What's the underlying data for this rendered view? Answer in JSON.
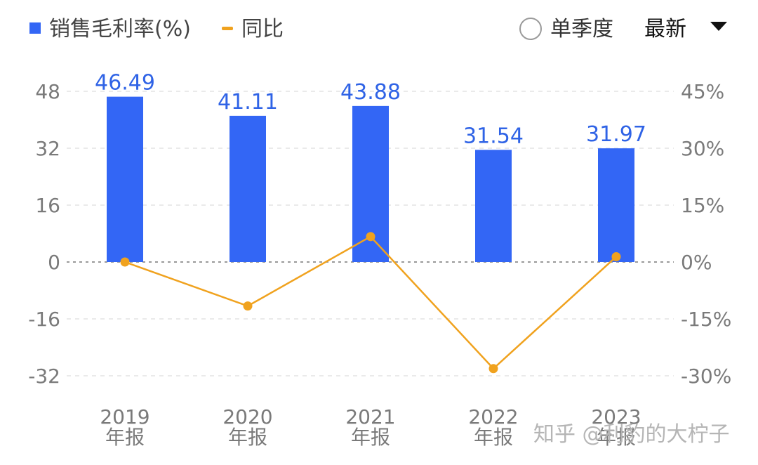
{
  "legend": {
    "bar_label": "销售毛利率(%)",
    "line_label": "同比"
  },
  "controls": {
    "single_quarter_label": "单季度",
    "period_label": "最新"
  },
  "watermark": "知乎 @利豹的大柠子",
  "colors": {
    "bar": "#3366f5",
    "line": "#f0a21e",
    "data_label": "#2f63e6"
  },
  "chart_data": {
    "type": "bar",
    "categories": [
      [
        "2019",
        "年报"
      ],
      [
        "2020",
        "年报"
      ],
      [
        "2021",
        "年报"
      ],
      [
        "2022",
        "年报"
      ],
      [
        "2023",
        "年报"
      ]
    ],
    "series": [
      {
        "name": "销售毛利率(%)",
        "type": "bar",
        "axis": "left",
        "values": [
          46.49,
          41.11,
          43.88,
          31.54,
          31.97
        ]
      },
      {
        "name": "同比",
        "type": "line",
        "axis": "right",
        "values": [
          0,
          -11.6,
          6.7,
          -28.1,
          1.4
        ]
      }
    ],
    "left_axis": {
      "min": -32,
      "max": 48,
      "ticks": [
        48,
        32,
        16,
        0,
        -16,
        -32
      ]
    },
    "right_axis": {
      "min": -30,
      "max": 45,
      "ticks": [
        "45%",
        "30%",
        "15%",
        "0%",
        "-15%",
        "-30%"
      ]
    },
    "grid": true,
    "legend_position": "top-left"
  }
}
